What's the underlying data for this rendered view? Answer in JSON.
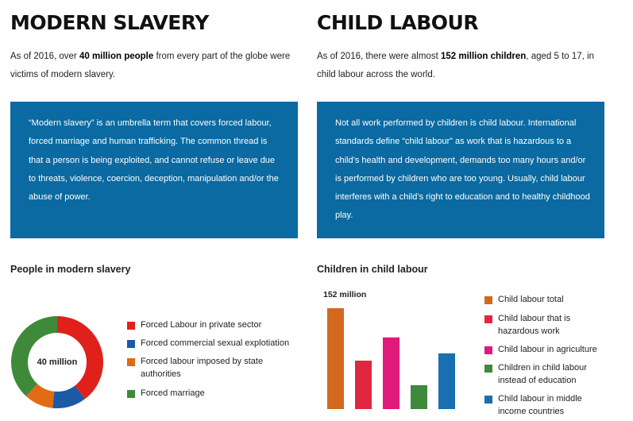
{
  "left": {
    "heading": "MODERN SLAVERY",
    "intro_prefix": "As of 2016, over ",
    "intro_bold": "40 million people",
    "intro_suffix": " from every part of the globe were victims of modern slavery.",
    "box_text": "“Modern slavery” is an umbrella term that covers forced labour, forced marriage and human trafficking. The common thread is that a person is being exploited, and cannot refuse or leave due to threats, violence, coercion, deception, manipulation and/or the abuse of power.",
    "chart_title": "People in modern slavery",
    "donut_center": "40 million",
    "legend": [
      {
        "label": "Forced Labour in private sector",
        "color": "#e0201b"
      },
      {
        "label": "Forced commercial sexual explotiation",
        "color": "#1c5aa6"
      },
      {
        "label": "Forced labour imposed by state authorities",
        "color": "#e06b13"
      },
      {
        "label": "Forced marriage",
        "color": "#3e8a3a"
      }
    ]
  },
  "right": {
    "heading": "CHILD LABOUR",
    "intro_prefix": "As of 2016, there were almost ",
    "intro_bold": "152 million children",
    "intro_suffix": ", aged 5 to 17, in child labour across the world.",
    "box_text": "Not all work performed by children is child labour. International standards define “child labour” as work that is hazardous to a child’s health and development, demands too many hours and/or is performed by children who are too young. Usually, child labour interferes with a child’s right to education and to healthy childhood play.",
    "chart_title": "Children in child labour",
    "bar_label": "152 million",
    "legend": [
      {
        "label": "Child labour total",
        "color": "#d2691e"
      },
      {
        "label": "Child labour that is hazardous work",
        "color": "#e0273f"
      },
      {
        "label": "Child labour in agriculture",
        "color": "#e0197a"
      },
      {
        "label": "Children in child labour instead of education",
        "color": "#3e8a3a"
      },
      {
        "label": "Child labour in middle income countries",
        "color": "#1a6fb0"
      }
    ]
  },
  "chart_data": [
    {
      "type": "pie",
      "title": "People in modern slavery",
      "center_label": "40 million",
      "categories": [
        "Forced Labour in private sector",
        "Forced commercial sexual explotiation",
        "Forced labour imposed by state authorities",
        "Forced marriage"
      ],
      "values": [
        16,
        4.8,
        4.1,
        15.4
      ],
      "colors": [
        "#e0201b",
        "#1c5aa6",
        "#e06b13",
        "#3e8a3a"
      ]
    },
    {
      "type": "bar",
      "title": "Children in child labour",
      "categories": [
        "Child labour total",
        "Child labour that is hazardous work",
        "Child labour in agriculture",
        "Children in child labour instead of education",
        "Child labour in middle income countries"
      ],
      "values": [
        152,
        73,
        108,
        36,
        84
      ],
      "data_labels": [
        "152 million",
        "",
        "",
        "",
        ""
      ],
      "colors": [
        "#d2691e",
        "#e0273f",
        "#e0197a",
        "#3e8a3a",
        "#1a6fb0"
      ],
      "ylim": [
        0,
        152
      ]
    }
  ]
}
